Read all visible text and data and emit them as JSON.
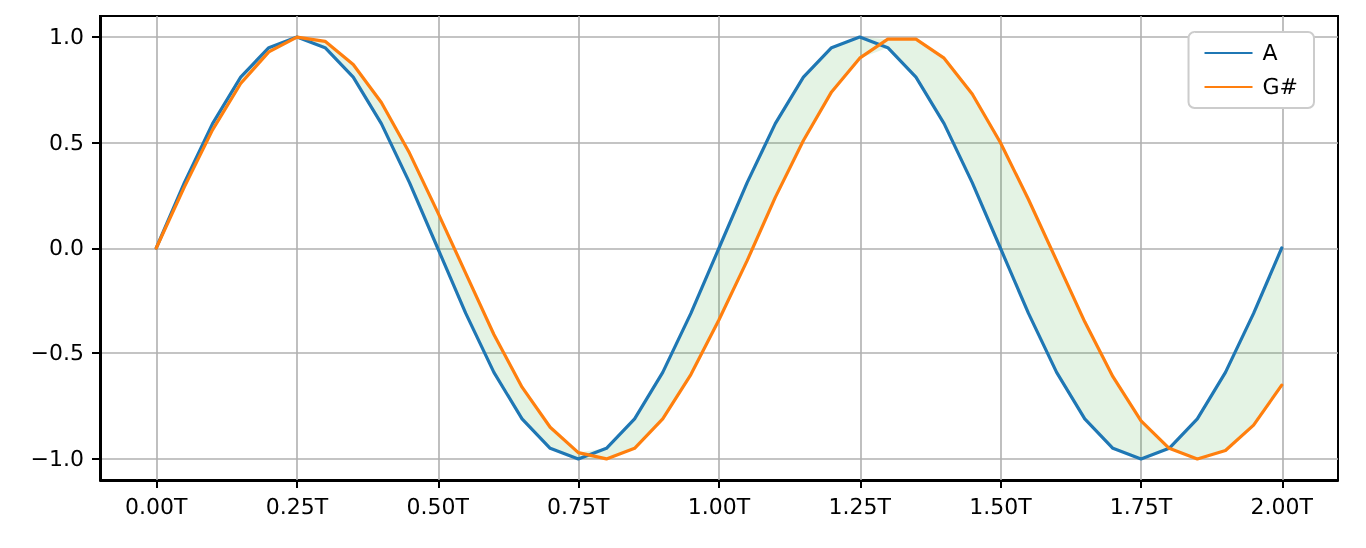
{
  "chart_data": {
    "type": "line",
    "x": [
      0,
      0.05,
      0.1,
      0.15,
      0.2,
      0.25,
      0.3,
      0.35,
      0.4,
      0.45,
      0.5,
      0.55,
      0.6,
      0.65,
      0.7,
      0.75,
      0.8,
      0.85,
      0.9,
      0.95,
      1,
      1.05,
      1.1,
      1.15,
      1.2,
      1.25,
      1.3,
      1.35,
      1.4,
      1.45,
      1.5,
      1.55,
      1.6,
      1.65,
      1.7,
      1.75,
      1.8,
      1.85,
      1.9,
      1.95,
      2
    ],
    "series": [
      {
        "name": "A",
        "color": "#1f77b4",
        "values": [
          0,
          0.31,
          0.59,
          0.81,
          0.95,
          1,
          0.95,
          0.81,
          0.59,
          0.31,
          0,
          -0.31,
          -0.59,
          -0.81,
          -0.95,
          -1,
          -0.95,
          -0.81,
          -0.59,
          -0.31,
          0,
          0.31,
          0.59,
          0.81,
          0.95,
          1,
          0.95,
          0.81,
          0.59,
          0.31,
          0,
          -0.31,
          -0.59,
          -0.81,
          -0.95,
          -1,
          -0.95,
          -0.81,
          -0.59,
          -0.31,
          0
        ],
        "lower": [
          0,
          0.29,
          0.56,
          0.78,
          0.93,
          1,
          0.95,
          0.81,
          0.59,
          0.31,
          0,
          -0.31,
          -0.59,
          -0.81,
          -0.95,
          -1,
          -1,
          -0.95,
          -0.81,
          -0.6,
          -0.34,
          -0.06,
          0.24,
          0.51,
          0.74,
          0.9,
          0.95,
          0.81,
          0.59,
          0.31,
          0,
          -0.31,
          -0.59,
          -0.81,
          -0.95,
          -1,
          -0.95,
          -1,
          -0.96,
          -0.84,
          -0.65
        ],
        "upper": [
          0,
          0.31,
          0.59,
          0.81,
          0.95,
          1,
          0.98,
          0.87,
          0.69,
          0.45,
          0.17,
          -0.12,
          -0.41,
          -0.66,
          -0.85,
          -0.97,
          -0.95,
          -0.81,
          -0.59,
          -0.31,
          0,
          0.31,
          0.59,
          0.81,
          0.95,
          1,
          0.99,
          0.99,
          0.9,
          0.73,
          0.5,
          0.23,
          -0.06,
          -0.35,
          -0.61,
          -0.82,
          -0.95,
          -0.81,
          -0.59,
          -0.31,
          0
        ]
      },
      {
        "name": "G#",
        "color": "#ff7f0e",
        "values": [
          0,
          0.29,
          0.56,
          0.78,
          0.93,
          1,
          0.98,
          0.87,
          0.69,
          0.45,
          0.17,
          -0.12,
          -0.41,
          -0.66,
          -0.85,
          -0.97,
          -1,
          -0.95,
          -0.81,
          -0.6,
          -0.34,
          -0.06,
          0.24,
          0.51,
          0.74,
          0.9,
          0.99,
          0.99,
          0.9,
          0.73,
          0.5,
          0.23,
          -0.06,
          -0.35,
          -0.61,
          -0.82,
          -0.95,
          -1,
          -0.96,
          -0.84,
          -0.65
        ]
      }
    ],
    "xlim": [
      -0.1,
      2.1
    ],
    "xticks": [
      {
        "value": 0,
        "label": "0.00T"
      },
      {
        "value": 0.25,
        "label": "0.25T"
      },
      {
        "value": 0.5,
        "label": "0.50T"
      },
      {
        "value": 0.75,
        "label": "0.75T"
      },
      {
        "value": 1,
        "label": "1.00T"
      },
      {
        "value": 1.25,
        "label": "1.25T"
      },
      {
        "value": 1.5,
        "label": "1.50T"
      },
      {
        "value": 1.75,
        "label": "1.75T"
      },
      {
        "value": 2,
        "label": "2.00T"
      }
    ],
    "ylim": [
      -1.1,
      1.1
    ],
    "yticks": [
      {
        "value": -1,
        "label": "−1.0"
      },
      {
        "value": -0.5,
        "label": "−0.5"
      },
      {
        "value": 0,
        "label": "0.0"
      },
      {
        "value": 0.5,
        "label": "0.5"
      },
      {
        "value": 1,
        "label": "1.0"
      }
    ],
    "grid": true,
    "legend": "top right",
    "marker": "none",
    "line_style": "solid"
  }
}
